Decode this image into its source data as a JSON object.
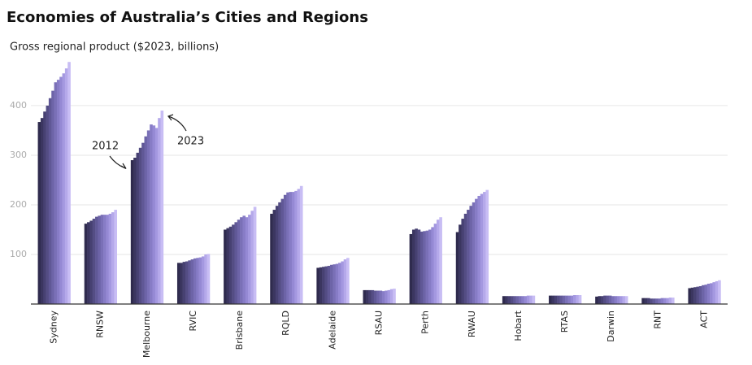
{
  "chart_data": {
    "type": "bar",
    "title": "Economies of Australia’s Cities and Regions",
    "subtitle": "Gross regional product ($2023, billions)",
    "annotations": [
      "2012",
      "2023"
    ],
    "categories": [
      "Sydney",
      "RNSW",
      "Melbourne",
      "RVIC",
      "Brisbane",
      "RQLD",
      "Adelaide",
      "RSAU",
      "Perth",
      "RWAU",
      "Hobart",
      "RTAS",
      "Darwin",
      "RNT",
      "ACT"
    ],
    "series": [
      {
        "color": "#2f2b4e",
        "values": [
          367,
          162,
          290,
          83,
          150,
          182,
          73,
          28,
          141,
          145,
          16,
          17,
          15,
          12,
          32
        ]
      },
      {
        "color": "#3b3660",
        "values": [
          375,
          165,
          295,
          83,
          153,
          190,
          74,
          28,
          150,
          160,
          16,
          17,
          16,
          12,
          33
        ]
      },
      {
        "color": "#474172",
        "values": [
          388,
          168,
          305,
          85,
          156,
          198,
          75,
          28,
          152,
          172,
          16,
          17,
          16,
          12,
          34
        ]
      },
      {
        "color": "#544d84",
        "values": [
          400,
          172,
          315,
          86,
          160,
          205,
          76,
          28,
          150,
          182,
          16,
          17,
          17,
          11,
          35
        ]
      },
      {
        "color": "#605896",
        "values": [
          415,
          176,
          325,
          88,
          165,
          212,
          77,
          27,
          146,
          190,
          16,
          17,
          17,
          11,
          36
        ]
      },
      {
        "color": "#6d64a7",
        "values": [
          430,
          178,
          338,
          90,
          170,
          220,
          79,
          27,
          147,
          198,
          16,
          17,
          17,
          11,
          38
        ]
      },
      {
        "color": "#7a70b7",
        "values": [
          447,
          180,
          350,
          92,
          175,
          225,
          80,
          27,
          148,
          205,
          16,
          17,
          16,
          11,
          39
        ]
      },
      {
        "color": "#877cc6",
        "values": [
          452,
          180,
          362,
          93,
          178,
          226,
          81,
          26,
          150,
          212,
          16,
          17,
          16,
          12,
          41
        ]
      },
      {
        "color": "#9589d4",
        "values": [
          458,
          180,
          360,
          94,
          175,
          226,
          83,
          27,
          155,
          218,
          16,
          17,
          16,
          12,
          42
        ]
      },
      {
        "color": "#a498e0",
        "values": [
          465,
          182,
          355,
          96,
          180,
          228,
          86,
          28,
          162,
          222,
          17,
          18,
          16,
          12,
          44
        ]
      },
      {
        "color": "#b5a9ea",
        "values": [
          475,
          185,
          375,
          100,
          188,
          232,
          90,
          30,
          170,
          226,
          17,
          18,
          16,
          13,
          46
        ]
      },
      {
        "color": "#c8bdf4",
        "values": [
          488,
          190,
          390,
          101,
          196,
          238,
          93,
          31,
          175,
          230,
          17,
          18,
          16,
          13,
          48
        ]
      }
    ],
    "ylim": [
      0,
      490
    ],
    "yticks": [
      100,
      200,
      300,
      400
    ],
    "grid": true
  }
}
